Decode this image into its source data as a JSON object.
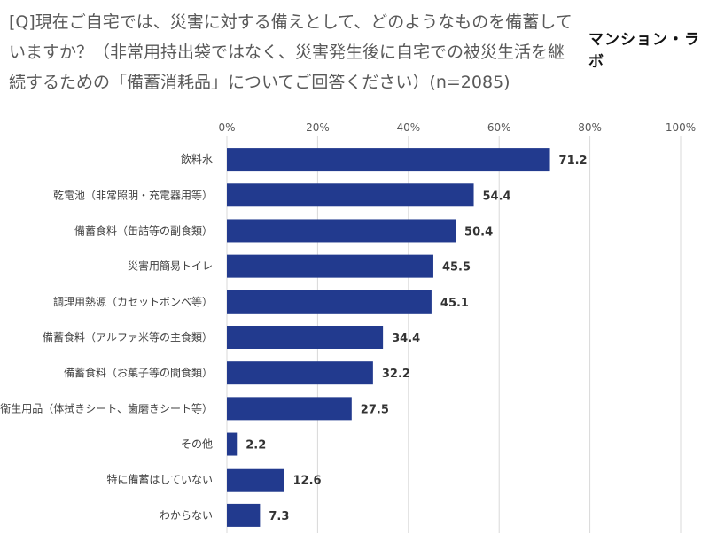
{
  "header": {
    "title": "[Q]現在ご自宅では、災害に対する備えとして、どのようなものを備蓄していますか？（非常用持出袋ではなく、災害発生後に自宅での被災生活を継続するための「備蓄消耗品」についてご回答ください）(n=2085)",
    "logo": "マンション・ラボ"
  },
  "chart_data": {
    "type": "bar",
    "orientation": "horizontal",
    "categories": [
      "飲料水",
      "乾電池（非常照明・充電器用等）",
      "備蓄食料（缶詰等の副食類）",
      "災害用簡易トイレ",
      "調理用熱源（カセットボンベ等）",
      "備蓄食料（アルファ米等の主食類）",
      "備蓄食料（お菓子等の間食類）",
      "衛生用品（体拭きシート、歯磨きシート等）",
      "その他",
      "特に備蓄はしていない",
      "わからない"
    ],
    "values": [
      71.2,
      54.4,
      50.4,
      45.5,
      45.1,
      34.4,
      32.2,
      27.5,
      2.2,
      12.6,
      7.3
    ],
    "value_labels": [
      "71.2",
      "54.4",
      "50.4",
      "45.5",
      "45.1",
      "34.4",
      "32.2",
      "27.5",
      "2.2",
      "12.6",
      "7.3"
    ],
    "xlim": [
      0,
      100
    ],
    "ticks": [
      0,
      20,
      40,
      60,
      80,
      100
    ],
    "tick_labels": [
      "0%",
      "20%",
      "40%",
      "60%",
      "80%",
      "100%"
    ],
    "axis_position": "top",
    "grid": true,
    "bar_color": "#223a8e",
    "grid_color": "#d9d9d9"
  }
}
